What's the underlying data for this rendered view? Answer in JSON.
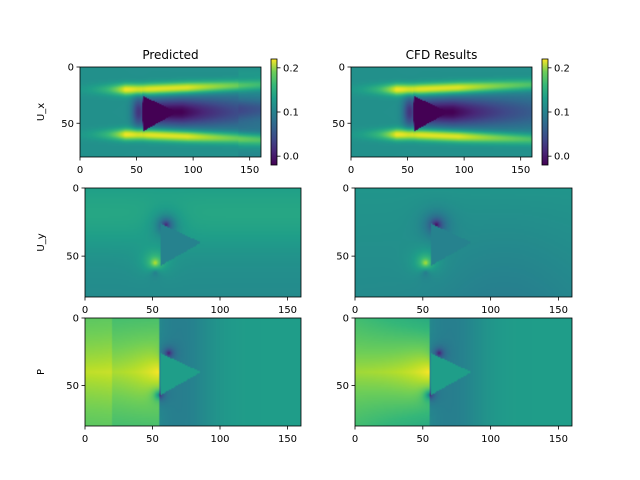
{
  "figure": {
    "titles": [
      "Predicted",
      "CFD Results"
    ]
  },
  "chart_data": [
    {
      "type": "heatmap",
      "name": "predicted-ux",
      "title": "Predicted",
      "ylabel": "U_x",
      "field": "ux",
      "variant": "pred",
      "xlim": [
        0,
        160
      ],
      "ylim": [
        80,
        0
      ],
      "xticks": [
        "0",
        "50",
        "100",
        "150"
      ],
      "yticks": [
        "0",
        "50"
      ],
      "colorbar": {
        "range": [
          -0.02,
          0.22
        ],
        "ticks": [
          "0.2",
          "0.1",
          "0.0"
        ],
        "tick_values": [
          0.2,
          0.1,
          0.0
        ]
      }
    },
    {
      "type": "heatmap",
      "name": "cfd-ux",
      "title": "CFD Results",
      "ylabel": "",
      "field": "ux",
      "variant": "cfd",
      "xlim": [
        0,
        160
      ],
      "ylim": [
        80,
        0
      ],
      "xticks": [
        "0",
        "50",
        "100",
        "150"
      ],
      "yticks": [
        "0",
        "50"
      ],
      "colorbar": {
        "range": [
          -0.02,
          0.22
        ],
        "ticks": [
          "0.2",
          "0.1",
          "0.0"
        ],
        "tick_values": [
          0.2,
          0.1,
          0.0
        ]
      }
    },
    {
      "type": "heatmap",
      "name": "predicted-uy",
      "title": "",
      "ylabel": "U_y",
      "field": "uy",
      "variant": "pred",
      "xlim": [
        0,
        160
      ],
      "ylim": [
        80,
        0
      ],
      "xticks": [
        "0",
        "50",
        "100",
        "150"
      ],
      "yticks": [
        "0",
        "50"
      ]
    },
    {
      "type": "heatmap",
      "name": "cfd-uy",
      "title": "",
      "ylabel": "",
      "field": "uy",
      "variant": "cfd",
      "xlim": [
        0,
        160
      ],
      "ylim": [
        80,
        0
      ],
      "xticks": [
        "0",
        "50",
        "100",
        "150"
      ],
      "yticks": [
        "0",
        "50"
      ]
    },
    {
      "type": "heatmap",
      "name": "predicted-p",
      "title": "",
      "ylabel": "P",
      "field": "p",
      "variant": "pred",
      "xlim": [
        0,
        160
      ],
      "ylim": [
        80,
        0
      ],
      "xticks": [
        "0",
        "50",
        "100",
        "150"
      ],
      "yticks": [
        "0",
        "50"
      ]
    },
    {
      "type": "heatmap",
      "name": "cfd-p",
      "title": "",
      "ylabel": "",
      "field": "p",
      "variant": "cfd",
      "xlim": [
        0,
        160
      ],
      "ylim": [
        80,
        0
      ],
      "xticks": [
        "0",
        "50",
        "100",
        "150"
      ],
      "yticks": [
        "0",
        "50"
      ]
    }
  ],
  "colormap": "viridis",
  "colors": {
    "axis": "#000000",
    "background": "#ffffff"
  }
}
